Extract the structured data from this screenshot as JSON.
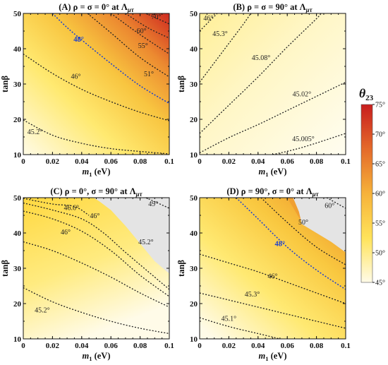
{
  "chart_data": [
    {
      "type": "contour",
      "title": "(A) ρ = σ = 0° at Λ",
      "title_sub": "μτ",
      "xlabel_main": "m",
      "xlabel_sub": "1",
      "xlabel_unit": " (eV)",
      "ylabel": "tanβ",
      "xlim": [
        0,
        0.1
      ],
      "ylim": [
        10,
        50
      ],
      "xticks": [
        "0",
        "0.02",
        "0.04",
        "0.06",
        "0.08",
        "0.1"
      ],
      "yticks": [
        "10",
        "20",
        "30",
        "40",
        "50"
      ],
      "contours": [
        {
          "label": "45.2°",
          "points": [
            [
              0.0,
              19.8
            ],
            [
              0.02,
              15.5
            ],
            [
              0.04,
              13.2
            ],
            [
              0.06,
              11.7
            ],
            [
              0.08,
              10.9
            ],
            [
              0.1,
              10.2
            ]
          ],
          "label_at": [
            0.008,
            15.8
          ]
        },
        {
          "label": "46°",
          "points": [
            [
              0.0,
              38.5
            ],
            [
              0.02,
              33
            ],
            [
              0.04,
              28.5
            ],
            [
              0.06,
              25
            ],
            [
              0.08,
              22
            ],
            [
              0.1,
              19.6
            ]
          ],
          "label_at": [
            0.036,
            31.5
          ]
        },
        {
          "label": "48°",
          "highlight": true,
          "points": [
            [
              0.02,
              50
            ],
            [
              0.03,
              46
            ],
            [
              0.04,
              42.5
            ],
            [
              0.06,
              35.8
            ],
            [
              0.08,
              29.5
            ],
            [
              0.1,
              24.5
            ]
          ],
          "label_at": [
            0.038,
            42
          ]
        },
        {
          "label": "51°",
          "points": [
            [
              0.044,
              50
            ],
            [
              0.06,
              44.5
            ],
            [
              0.08,
              37.5
            ],
            [
              0.1,
              32
            ]
          ],
          "label_at": [
            0.086,
            32.2
          ]
        },
        {
          "label": "55°",
          "points": [
            [
              0.06,
              50
            ],
            [
              0.08,
              44
            ],
            [
              0.1,
              38.5
            ]
          ],
          "label_at": [
            0.082,
            40.2
          ]
        },
        {
          "label": "60°",
          "points": [
            [
              0.07,
              50
            ],
            [
              0.085,
              46
            ],
            [
              0.1,
              43
            ]
          ],
          "label_at": [
            0.081,
            44.4
          ]
        },
        {
          "label": "70°",
          "points": [
            [
              0.084,
              50
            ],
            [
              0.1,
              47
            ]
          ],
          "label_at": [
            0.091,
            48.4
          ]
        }
      ],
      "shading": {
        "peak_theta": 75,
        "base_theta": 45
      }
    },
    {
      "type": "contour",
      "title": "(B) ρ = σ = 90° at Λ",
      "title_sub": "μτ",
      "xlabel_main": "m",
      "xlabel_sub": "1",
      "xlabel_unit": " (eV)",
      "ylabel": "tanβ",
      "xlim": [
        0,
        0.1
      ],
      "ylim": [
        10,
        50
      ],
      "xticks": [
        "0",
        "0.02",
        "0.04",
        "0.06",
        "0.08",
        "0.1"
      ],
      "yticks": [
        "10",
        "20",
        "30",
        "40",
        "50"
      ],
      "contours": [
        {
          "label": "45.005°",
          "points": [
            [
              0.05,
              10
            ],
            [
              0.07,
              12
            ],
            [
              0.1,
              16
            ]
          ],
          "label_at": [
            0.071,
            13.8
          ]
        },
        {
          "label": "45.02°",
          "points": [
            [
              0.0,
              10.5
            ],
            [
              0.02,
              14.8
            ],
            [
              0.04,
              18.5
            ],
            [
              0.06,
              22.5
            ],
            [
              0.08,
              26.5
            ],
            [
              0.1,
              30.5
            ]
          ],
          "label_at": [
            0.07,
            26.5
          ]
        },
        {
          "label": "45.08°",
          "points": [
            [
              0.0,
              16
            ],
            [
              0.02,
              24
            ],
            [
              0.04,
              32
            ],
            [
              0.06,
              40.5
            ],
            [
              0.08,
              48.5
            ],
            [
              0.083,
              50
            ]
          ],
          "label_at": [
            0.042,
            36.8
          ]
        },
        {
          "label": "45.3°",
          "points": [
            [
              0.0,
              30.5
            ],
            [
              0.01,
              36
            ],
            [
              0.02,
              41.5
            ],
            [
              0.03,
              47
            ],
            [
              0.035,
              50
            ]
          ],
          "label_at": [
            0.014,
            43.6
          ]
        },
        {
          "label": "46°",
          "points": [
            [
              0.0,
              45
            ],
            [
              0.006,
              47.5
            ],
            [
              0.012,
              50
            ]
          ],
          "label_at": [
            0.006,
            48
          ]
        }
      ],
      "shading": {
        "peak_theta": 46.2,
        "base_theta": 45
      }
    },
    {
      "type": "contour",
      "title": "(C) ρ = 0°, σ = 90° at Λ",
      "title_sub": "μτ",
      "xlabel_main": "m",
      "xlabel_sub": "1",
      "xlabel_unit": " (eV)",
      "ylabel": "tanβ",
      "xlim": [
        0,
        0.1
      ],
      "ylim": [
        10,
        50
      ],
      "xticks": [
        "0",
        "0.02",
        "0.04",
        "0.06",
        "0.08",
        "0.1"
      ],
      "yticks": [
        "10",
        "20",
        "30",
        "40",
        "50"
      ],
      "excluded_region": [
        [
          0.048,
          50
        ],
        [
          0.1,
          50
        ],
        [
          0.1,
          28.5
        ],
        [
          0.09,
          32
        ],
        [
          0.08,
          37
        ],
        [
          0.07,
          42
        ],
        [
          0.06,
          46.5
        ],
        [
          0.052,
          49
        ]
      ],
      "contours": [
        {
          "label": "45.2°",
          "points": [
            [
              0.0,
              24.5
            ],
            [
              0.02,
              20.5
            ],
            [
              0.04,
              17.5
            ],
            [
              0.06,
              15
            ],
            [
              0.08,
              13
            ],
            [
              0.1,
              11.5
            ]
          ],
          "label_at": [
            0.013,
            17.5
          ]
        },
        {
          "label": "46°",
          "points": [
            [
              0.0,
              37.5
            ],
            [
              0.02,
              35
            ],
            [
              0.04,
              31.5
            ],
            [
              0.06,
              27.5
            ],
            [
              0.08,
              23
            ],
            [
              0.1,
              19
            ]
          ],
          "label_at": [
            0.029,
            39.6
          ]
        },
        {
          "label": "",
          "points": [
            [
              0.0,
              46.2
            ],
            [
              0.02,
              44
            ],
            [
              0.04,
              40.5
            ],
            [
              0.06,
              35
            ],
            [
              0.08,
              28
            ],
            [
              0.1,
              22
            ]
          ],
          "label_at": null
        },
        {
          "label": "46°",
          "points": [
            [
              0.0,
              48.5
            ],
            [
              0.02,
              46.5
            ],
            [
              0.04,
              44
            ],
            [
              0.055,
              40
            ],
            [
              0.07,
              34.5
            ],
            [
              0.09,
              27.5
            ],
            [
              0.1,
              24
            ]
          ],
          "label_at": [
            0.049,
            44.2
          ]
        },
        {
          "label": "46.6°",
          "points": [
            [
              0.0,
              49.8
            ],
            [
              0.02,
              48.2
            ],
            [
              0.035,
              47.5
            ],
            [
              0.045,
              45
            ]
          ],
          "label_at": [
            0.033,
            46.5
          ]
        },
        {
          "label": "49°",
          "points": [
            [
              0.084,
              50
            ],
            [
              0.1,
              47
            ]
          ],
          "label_at": [
            0.089,
            47.6
          ]
        }
      ],
      "orange_band": [
        [
          0.082,
          50
        ],
        [
          0.1,
          50
        ],
        [
          0.1,
          47.5
        ],
        [
          0.09,
          48.5
        ]
      ],
      "extra_labels": [
        {
          "label": "45.2°",
          "at": [
            0.084,
            36.8
          ]
        }
      ],
      "shading": {
        "peak_theta": 48,
        "base_theta": 45
      }
    },
    {
      "type": "contour",
      "title": "(D) ρ = 90°, σ = 0° at Λ",
      "title_sub": "μτ",
      "xlabel_main": "m",
      "xlabel_sub": "1",
      "xlabel_unit": " (eV)",
      "ylabel": "tanβ",
      "xlim": [
        0,
        0.1
      ],
      "ylim": [
        10,
        50
      ],
      "xticks": [
        "0",
        "0.02",
        "0.04",
        "0.06",
        "0.08",
        "0.1"
      ],
      "yticks": [
        "10",
        "20",
        "30",
        "40",
        "50"
      ],
      "excluded_region": [
        [
          0.064,
          50
        ],
        [
          0.1,
          50
        ],
        [
          0.1,
          34.5
        ],
        [
          0.09,
          37.5
        ],
        [
          0.08,
          40
        ],
        [
          0.07,
          42.5
        ],
        [
          0.068,
          46
        ]
      ],
      "contours": [
        {
          "label": "45.1°",
          "points": [
            [
              0.0,
              16
            ],
            [
              0.02,
              13.5
            ],
            [
              0.04,
              11.5
            ],
            [
              0.055,
              10
            ]
          ],
          "label_at": [
            0.02,
            15.1
          ]
        },
        {
          "label": "45.3°",
          "points": [
            [
              0.0,
              23
            ],
            [
              0.02,
              21
            ],
            [
              0.04,
              19
            ],
            [
              0.06,
              17
            ],
            [
              0.08,
              15
            ],
            [
              0.1,
              13
            ]
          ],
          "label_at": [
            0.036,
            22
          ]
        },
        {
          "label": "46°",
          "points": [
            [
              0.0,
              34
            ],
            [
              0.02,
              31.5
            ],
            [
              0.04,
              29
            ],
            [
              0.06,
              26
            ],
            [
              0.08,
              23
            ],
            [
              0.1,
              20
            ]
          ],
          "label_at": [
            0.05,
            27.1
          ]
        },
        {
          "label": "48°",
          "highlight": true,
          "points": [
            [
              0.025,
              50
            ],
            [
              0.04,
              44
            ],
            [
              0.06,
              36
            ],
            [
              0.08,
              29.5
            ],
            [
              0.1,
              24
            ]
          ],
          "label_at": [
            0.055,
            36.3
          ]
        },
        {
          "label": "50°",
          "points": [
            [
              0.042,
              50
            ],
            [
              0.06,
              43
            ],
            [
              0.08,
              36
            ],
            [
              0.1,
              31
            ]
          ],
          "label_at": [
            0.071,
            42.4
          ]
        },
        {
          "label": "60°",
          "points": [
            [
              0.087,
              50
            ],
            [
              0.1,
              47
            ]
          ],
          "label_at": [
            0.089,
            47.1
          ]
        }
      ],
      "orange_band": [
        [
          0.06,
          50
        ],
        [
          0.068,
          50
        ],
        [
          0.07,
          46
        ],
        [
          0.08,
          42
        ],
        [
          0.09,
          39
        ],
        [
          0.1,
          36
        ],
        [
          0.1,
          34.5
        ],
        [
          0.09,
          37.5
        ],
        [
          0.08,
          40
        ],
        [
          0.07,
          43
        ]
      ],
      "red_band": [
        [
          0.083,
          50
        ],
        [
          0.1,
          50
        ],
        [
          0.1,
          45.5
        ],
        [
          0.095,
          47.5
        ]
      ],
      "shading": {
        "peak_theta": 60,
        "base_theta": 45
      }
    }
  ],
  "colorbar": {
    "title_main": "θ",
    "title_sub": "23",
    "ticks": [
      "75°",
      "70°",
      "65°",
      "60°",
      "55°",
      "50°",
      "45°"
    ],
    "range": [
      45,
      75
    ],
    "colors": [
      "#fffbe8",
      "#ffe35a",
      "#f6b23a",
      "#e46a2a",
      "#c81e1e"
    ]
  }
}
